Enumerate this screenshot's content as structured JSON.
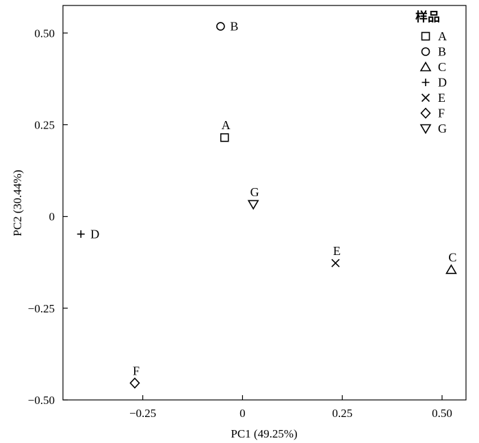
{
  "chart_data": {
    "type": "scatter",
    "xlabel": "PC1 (49.25%)",
    "ylabel": "PC2 (30.44%)",
    "xlim": [
      -0.45,
      0.56
    ],
    "ylim": [
      -0.5,
      0.575
    ],
    "xticks": [
      {
        "value": -0.25,
        "label": "−0.25"
      },
      {
        "value": 0,
        "label": "0"
      },
      {
        "value": 0.25,
        "label": "0.25"
      },
      {
        "value": 0.5,
        "label": "0.50"
      }
    ],
    "yticks": [
      {
        "value": 0.5,
        "label": "0.50"
      },
      {
        "value": 0.25,
        "label": "0.25"
      },
      {
        "value": 0,
        "label": "0"
      },
      {
        "value": -0.25,
        "label": "−0.25"
      },
      {
        "value": -0.5,
        "label": "−0.50"
      }
    ],
    "legend": {
      "title": "样品",
      "position": "top-right",
      "entries": [
        {
          "label": "A",
          "marker": "square"
        },
        {
          "label": "B",
          "marker": "circle"
        },
        {
          "label": "C",
          "marker": "triangle-up"
        },
        {
          "label": "D",
          "marker": "plus"
        },
        {
          "label": "E",
          "marker": "x"
        },
        {
          "label": "F",
          "marker": "diamond"
        },
        {
          "label": "G",
          "marker": "triangle-down"
        }
      ]
    },
    "points": [
      {
        "label": "A",
        "marker": "square",
        "x": -0.045,
        "y": 0.215,
        "label_pos": "above"
      },
      {
        "label": "B",
        "marker": "circle",
        "x": -0.055,
        "y": 0.518,
        "label_pos": "right"
      },
      {
        "label": "C",
        "marker": "triangle-up",
        "x": 0.523,
        "y": -0.145,
        "label_pos": "above"
      },
      {
        "label": "D",
        "marker": "plus",
        "x": -0.405,
        "y": -0.048,
        "label_pos": "right"
      },
      {
        "label": "E",
        "marker": "x",
        "x": 0.233,
        "y": -0.127,
        "label_pos": "above"
      },
      {
        "label": "F",
        "marker": "diamond",
        "x": -0.27,
        "y": -0.454,
        "label_pos": "above"
      },
      {
        "label": "G",
        "marker": "triangle-down",
        "x": 0.027,
        "y": 0.033,
        "label_pos": "above"
      }
    ]
  }
}
